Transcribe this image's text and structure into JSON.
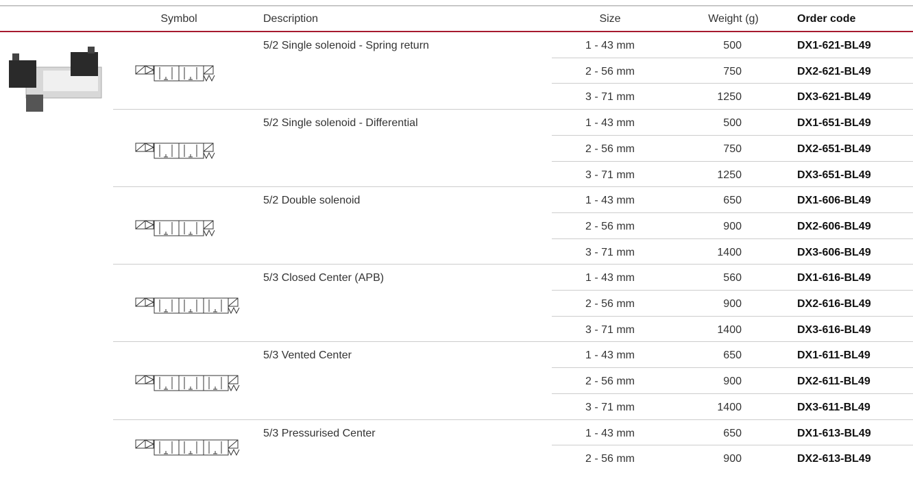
{
  "header": {
    "columns": [
      "Symbol",
      "Description",
      "Size",
      "Weight (g)",
      "Order code"
    ]
  },
  "groups": [
    {
      "description": "5/2 Single solenoid - Spring return",
      "rows": [
        {
          "size": "1 - 43 mm",
          "weight": 500,
          "code": "DX1-621-BL49"
        },
        {
          "size": "2 - 56 mm",
          "weight": 750,
          "code": "DX2-621-BL49"
        },
        {
          "size": "3 - 71 mm",
          "weight": 1250,
          "code": "DX3-621-BL49"
        }
      ]
    },
    {
      "description": "5/2 Single solenoid - Differential",
      "rows": [
        {
          "size": "1 - 43 mm",
          "weight": 500,
          "code": "DX1-651-BL49"
        },
        {
          "size": "2 - 56 mm",
          "weight": 750,
          "code": "DX2-651-BL49"
        },
        {
          "size": "3 - 71 mm",
          "weight": 1250,
          "code": "DX3-651-BL49"
        }
      ]
    },
    {
      "description": "5/2 Double solenoid",
      "rows": [
        {
          "size": "1 - 43 mm",
          "weight": 650,
          "code": "DX1-606-BL49"
        },
        {
          "size": "2 - 56 mm",
          "weight": 900,
          "code": "DX2-606-BL49"
        },
        {
          "size": "3 - 71 mm",
          "weight": 1400,
          "code": "DX3-606-BL49"
        }
      ]
    },
    {
      "description": "5/3 Closed Center (APB)",
      "rows": [
        {
          "size": "1 - 43 mm",
          "weight": 560,
          "code": "DX1-616-BL49"
        },
        {
          "size": "2 - 56 mm",
          "weight": 900,
          "code": "DX2-616-BL49"
        },
        {
          "size": "3 - 71 mm",
          "weight": 1400,
          "code": "DX3-616-BL49"
        }
      ]
    },
    {
      "description": "5/3 Vented Center",
      "rows": [
        {
          "size": "1 - 43 mm",
          "weight": 650,
          "code": "DX1-611-BL49"
        },
        {
          "size": "2 - 56 mm",
          "weight": 900,
          "code": "DX2-611-BL49"
        },
        {
          "size": "3 - 71 mm",
          "weight": 1400,
          "code": "DX3-611-BL49"
        }
      ]
    },
    {
      "description": "5/3 Pressurised Center",
      "rows": [
        {
          "size": "1 - 43 mm",
          "weight": 650,
          "code": "DX1-613-BL49"
        },
        {
          "size": "2 - 56 mm",
          "weight": 900,
          "code": "DX2-613-BL49"
        }
      ]
    }
  ]
}
